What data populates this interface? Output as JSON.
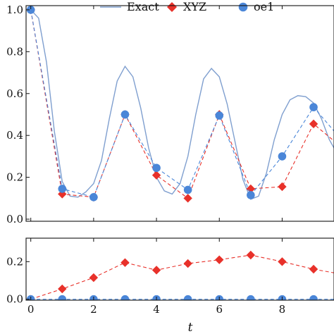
{
  "chart_data": {
    "type": "line",
    "legend": {
      "placement": "top",
      "entries": [
        {
          "name": "Exact",
          "marker": "line"
        },
        {
          "name": "XYZ",
          "marker": "diamond"
        },
        {
          "name": "oe1",
          "marker": "circle"
        }
      ]
    },
    "colors": {
      "exact": "#7f9fcf",
      "xyz": "#e8312a",
      "oe1": "#4a86d8",
      "axis": "#111111"
    },
    "xlabel": "t",
    "xlim": [
      -0.15,
      9.65
    ],
    "xticks": [
      0,
      2,
      4,
      6,
      8
    ],
    "panels": [
      {
        "id": "top",
        "ylim": [
          -0.01,
          1.02
        ],
        "yticks": [
          0.0,
          0.2,
          0.4,
          0.6,
          0.8,
          1.0
        ],
        "ytick_labels": [
          "0.0",
          "0.2",
          "0.4",
          "0.6",
          "0.8",
          "1.0"
        ],
        "series": [
          {
            "name": "Exact",
            "style": "solid",
            "points": [
              [
                0,
                1.0
              ],
              [
                0.25,
                0.96
              ],
              [
                0.5,
                0.75
              ],
              [
                0.75,
                0.42
              ],
              [
                1.0,
                0.18
              ],
              [
                1.25,
                0.11
              ],
              [
                1.5,
                0.105
              ],
              [
                1.75,
                0.13
              ],
              [
                2.0,
                0.17
              ],
              [
                2.25,
                0.28
              ],
              [
                2.5,
                0.48
              ],
              [
                2.75,
                0.66
              ],
              [
                3.0,
                0.73
              ],
              [
                3.25,
                0.68
              ],
              [
                3.5,
                0.53
              ],
              [
                3.75,
                0.34
              ],
              [
                4.0,
                0.2
              ],
              [
                4.25,
                0.135
              ],
              [
                4.5,
                0.12
              ],
              [
                4.75,
                0.17
              ],
              [
                5.0,
                0.3
              ],
              [
                5.25,
                0.5
              ],
              [
                5.5,
                0.67
              ],
              [
                5.75,
                0.72
              ],
              [
                6.0,
                0.68
              ],
              [
                6.25,
                0.55
              ],
              [
                6.5,
                0.37
              ],
              [
                6.75,
                0.19
              ],
              [
                7.0,
                0.095
              ],
              [
                7.25,
                0.11
              ],
              [
                7.5,
                0.22
              ],
              [
                7.75,
                0.38
              ],
              [
                8.0,
                0.5
              ],
              [
                8.25,
                0.57
              ],
              [
                8.5,
                0.59
              ],
              [
                8.75,
                0.585
              ],
              [
                9.0,
                0.555
              ],
              [
                9.25,
                0.48
              ],
              [
                9.5,
                0.38
              ],
              [
                9.65,
                0.34
              ]
            ]
          },
          {
            "name": "XYZ",
            "style": "dashed",
            "marker": "diamond",
            "x": [
              0,
              1,
              2,
              3,
              4,
              5,
              6,
              7,
              8,
              9,
              10
            ],
            "y": [
              1.0,
              0.12,
              0.105,
              0.5,
              0.21,
              0.1,
              0.5,
              0.145,
              0.155,
              0.455,
              0.33
            ]
          },
          {
            "name": "oe1",
            "style": "dashed",
            "marker": "circle",
            "x": [
              0,
              1,
              2,
              3,
              4,
              5,
              6,
              7,
              8,
              9,
              10
            ],
            "y": [
              1.0,
              0.145,
              0.105,
              0.5,
              0.245,
              0.14,
              0.495,
              0.115,
              0.3,
              0.535,
              0.36
            ]
          }
        ]
      },
      {
        "id": "bottom",
        "ylim": [
          -0.005,
          0.325
        ],
        "yticks": [
          0.0,
          0.2
        ],
        "ytick_labels": [
          "0.0",
          "0.2"
        ],
        "series": [
          {
            "name": "XYZ",
            "style": "dashed",
            "marker": "diamond",
            "x": [
              0,
              1,
              2,
              3,
              4,
              5,
              6,
              7,
              8,
              9,
              10
            ],
            "y": [
              0.0,
              0.055,
              0.115,
              0.195,
              0.155,
              0.19,
              0.21,
              0.235,
              0.2,
              0.16,
              0.13
            ]
          },
          {
            "name": "oe1",
            "style": "dashed",
            "marker": "circle",
            "x": [
              0,
              1,
              2,
              3,
              4,
              5,
              6,
              7,
              8,
              9,
              10
            ],
            "y": [
              0,
              0,
              0,
              0,
              0,
              0,
              0,
              0,
              0,
              0,
              0
            ]
          }
        ]
      }
    ]
  }
}
